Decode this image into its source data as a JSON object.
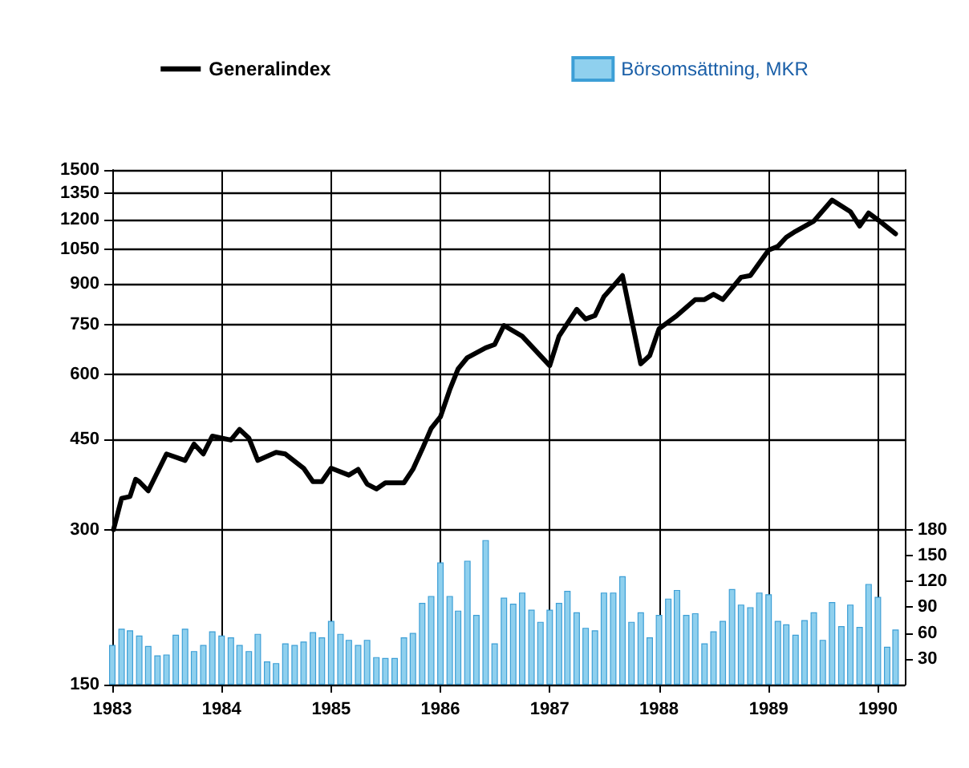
{
  "chart_data": {
    "type": "line",
    "log": "y",
    "ylim": [
      150,
      1500
    ],
    "yticks": [
      150,
      300,
      450,
      600,
      750,
      900,
      1050,
      1200,
      1350,
      1500
    ],
    "y2lim": [
      0,
      598
    ],
    "y2ticks": [
      30,
      60,
      90,
      120,
      150,
      180
    ],
    "xlim": [
      "1983-01",
      "1990-04"
    ],
    "xticks": [
      "1983",
      "1984",
      "1985",
      "1986",
      "1987",
      "1988",
      "1989",
      "1990"
    ],
    "grid": true,
    "legend": "top",
    "marker": "none",
    "series": [
      {
        "name": "Generalindex",
        "color": "#000000",
        "x": [
          "1983-01-05",
          "1983-02",
          "1983-03",
          "1983-03-20",
          "1983-04",
          "1983-05",
          "1983-07",
          "1983-09",
          "1983-10",
          "1983-11",
          "1983-12",
          "1984-02",
          "1984-03",
          "1984-04",
          "1984-05",
          "1984-07",
          "1984-08",
          "1984-10",
          "1984-11",
          "1984-12",
          "1985-01",
          "1985-03",
          "1985-04",
          "1985-05",
          "1985-06",
          "1985-07",
          "1985-09",
          "1985-10",
          "1985-11",
          "1985-12",
          "1986-01",
          "1986-02",
          "1986-03",
          "1986-04",
          "1986-06",
          "1986-07",
          "1986-08",
          "1986-10",
          "1987-01",
          "1987-02",
          "1987-04",
          "1987-05",
          "1987-06",
          "1987-07",
          "1987-09",
          "1987-11",
          "1987-12",
          "1988-01",
          "1988-03",
          "1988-05",
          "1988-06",
          "1988-07",
          "1988-08",
          "1988-10",
          "1988-11",
          "1989-01",
          "1989-02",
          "1989-03",
          "1989-04",
          "1989-06",
          "1989-08",
          "1989-10",
          "1989-11",
          "1989-12",
          "1990-01",
          "1990-03"
        ],
        "values": [
          300,
          345,
          348,
          376,
          372,
          357,
          421,
          409,
          440,
          421,
          456,
          448,
          470,
          452,
          409,
          424,
          421,
          395,
          372,
          372,
          395,
          383,
          393,
          368,
          360,
          370,
          370,
          393,
          430,
          472,
          497,
          561,
          616,
          648,
          677,
          687,
          748,
          713,
          625,
          713,
          804,
          770,
          782,
          851,
          935,
          630,
          654,
          737,
          782,
          840,
          840,
          860,
          840,
          928,
          935,
          1048,
          1066,
          1110,
          1140,
          1193,
          1311,
          1245,
          1167,
          1237,
          1200,
          1127
        ]
      },
      {
        "name": "Börsomsättning, MKR",
        "type": "bar",
        "axis": "y2",
        "color": "#8fd0ee",
        "x": [
          "1983-01",
          "1983-02",
          "1983-03",
          "1983-04",
          "1983-05",
          "1983-06",
          "1983-07",
          "1983-08",
          "1983-09",
          "1983-10",
          "1983-11",
          "1983-12",
          "1984-01",
          "1984-02",
          "1984-03",
          "1984-04",
          "1984-05",
          "1984-06",
          "1984-07",
          "1984-08",
          "1984-09",
          "1984-10",
          "1984-11",
          "1984-12",
          "1985-01",
          "1985-02",
          "1985-03",
          "1985-04",
          "1985-05",
          "1985-06",
          "1985-07",
          "1985-08",
          "1985-09",
          "1985-10",
          "1985-11",
          "1985-12",
          "1986-01",
          "1986-02",
          "1986-03",
          "1986-04",
          "1986-05",
          "1986-06",
          "1986-07",
          "1986-08",
          "1986-09",
          "1986-10",
          "1986-11",
          "1986-12",
          "1987-01",
          "1987-02",
          "1987-03",
          "1987-04",
          "1987-05",
          "1987-06",
          "1987-07",
          "1987-08",
          "1987-09",
          "1987-10",
          "1987-11",
          "1987-12",
          "1988-01",
          "1988-02",
          "1988-03",
          "1988-04",
          "1988-05",
          "1988-06",
          "1988-07",
          "1988-08",
          "1988-09",
          "1988-10",
          "1988-11",
          "1988-12",
          "1989-01",
          "1989-02",
          "1989-03",
          "1989-04",
          "1989-05",
          "1989-06",
          "1989-07",
          "1989-08",
          "1989-09",
          "1989-10",
          "1989-11",
          "1989-12",
          "1990-01",
          "1990-02",
          "1990-03"
        ],
        "values": [
          46,
          65,
          63,
          57,
          45,
          34,
          35,
          58,
          65,
          39,
          46,
          62,
          57,
          55,
          46,
          39,
          59,
          27,
          25,
          48,
          46,
          50,
          61,
          55,
          74,
          59,
          52,
          46,
          52,
          32,
          31,
          31,
          55,
          60,
          95,
          103,
          142,
          103,
          86,
          144,
          81,
          168,
          48,
          101,
          94,
          107,
          87,
          73,
          87,
          95,
          109,
          84,
          66,
          63,
          107,
          107,
          126,
          73,
          84,
          55,
          81,
          100,
          110,
          81,
          83,
          48,
          62,
          74,
          111,
          93,
          90,
          107,
          105,
          74,
          70,
          58,
          75,
          84,
          52,
          96,
          68,
          93,
          67,
          117,
          102,
          44,
          64
        ]
      }
    ]
  }
}
